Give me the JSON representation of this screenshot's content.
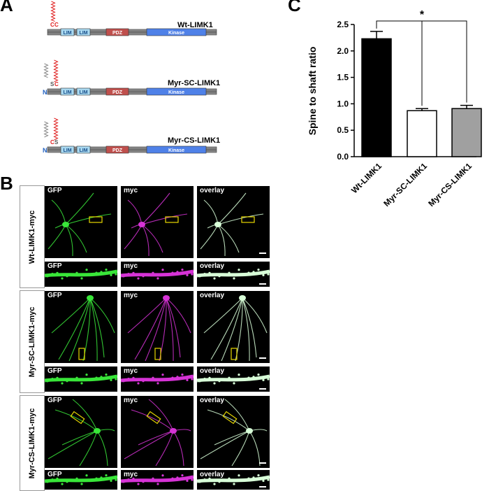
{
  "panels": {
    "a": "A",
    "b": "B",
    "c": "C"
  },
  "constructs": [
    {
      "name": "Wt-LIMK1",
      "n_label": "",
      "anchor": "CC",
      "domains": [
        "LIM",
        "LIM",
        "PDZ",
        "Kinase"
      ]
    },
    {
      "name": "Myr-SC-LIMK1",
      "n_label": "N",
      "anchor": "SC",
      "domains": [
        "LIM",
        "LIM",
        "PDZ",
        "Kinase"
      ]
    },
    {
      "name": "Myr-CS-LIMK1",
      "n_label": "N",
      "anchor": "CS",
      "domains": [
        "LIM",
        "LIM",
        "PDZ",
        "Kinase"
      ]
    }
  ],
  "rows": [
    {
      "label": "Wt-LIMK1-myc"
    },
    {
      "label": "Myr-SC-LIMK1-myc"
    },
    {
      "label": "Myr-CS-LIMK1-myc"
    }
  ],
  "channels": [
    "GFP",
    "myc",
    "overlay"
  ],
  "colors": {
    "lim": "#a8d8f0",
    "pdz": "#c0504d",
    "kinase": "#4f81e8",
    "backbone": "#7f7f7f",
    "gfp": "#39e639",
    "myc": "#d633d6",
    "overlay": "#d8ffd8",
    "wt_bar": "#000000",
    "sc_bar": "#ffffff",
    "cs_bar": "#a0a0a0",
    "box": "#e8d800"
  },
  "chart_data": {
    "type": "bar",
    "categories": [
      "Wt-LIMK1",
      "Myr-SC-LIMK1",
      "Myr-CS-LIMK1"
    ],
    "values": [
      2.23,
      0.87,
      0.91
    ],
    "errors": [
      0.14,
      0.04,
      0.06
    ],
    "ylabel": "Spine to shaft ratio",
    "ylim": [
      0,
      2.5
    ],
    "yticks": [
      "0.0",
      "0.5",
      "1.0",
      "1.5",
      "2.0",
      "2.5"
    ],
    "significance": "*"
  }
}
